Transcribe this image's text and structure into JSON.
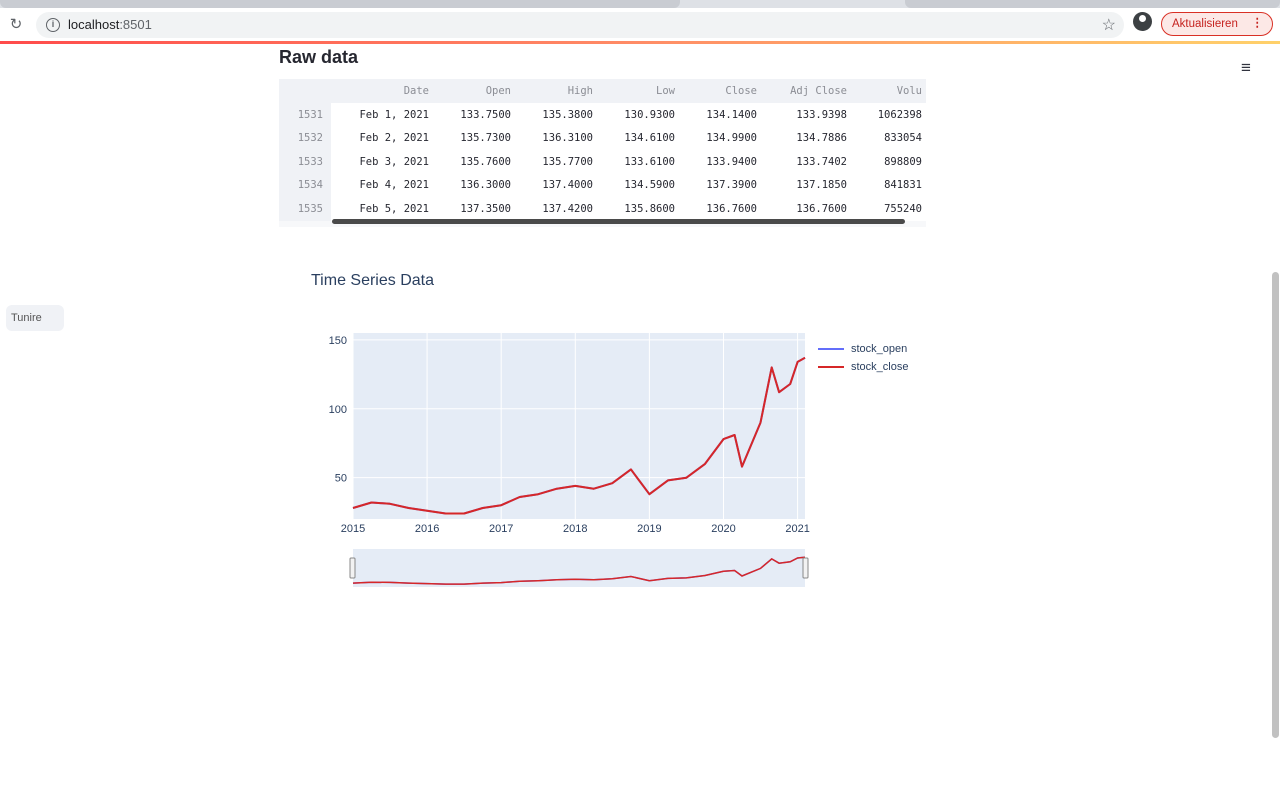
{
  "browser": {
    "url_host": "localhost",
    "url_port": ":8501",
    "update_label": "Aktualisieren",
    "update_dots": "⋮"
  },
  "sidebar": {
    "handle_label": "Tunire"
  },
  "raw": {
    "title": "Raw data",
    "columns": [
      "",
      "Date",
      "Open",
      "High",
      "Low",
      "Close",
      "Adj Close",
      "Volu"
    ],
    "rows": [
      [
        "1531",
        "Feb 1, 2021",
        "133.7500",
        "135.3800",
        "130.9300",
        "134.1400",
        "133.9398",
        "1062398"
      ],
      [
        "1532",
        "Feb 2, 2021",
        "135.7300",
        "136.3100",
        "134.6100",
        "134.9900",
        "134.7886",
        "833054"
      ],
      [
        "1533",
        "Feb 3, 2021",
        "135.7600",
        "135.7700",
        "133.6100",
        "133.9400",
        "133.7402",
        "898809"
      ],
      [
        "1534",
        "Feb 4, 2021",
        "136.3000",
        "137.4000",
        "134.5900",
        "137.3900",
        "137.1850",
        "841831"
      ],
      [
        "1535",
        "Feb 5, 2021",
        "137.3500",
        "137.4200",
        "135.8600",
        "136.7600",
        "136.7600",
        "755240"
      ]
    ]
  },
  "colors": {
    "open": "#636efa",
    "close": "#d62728",
    "plot_bg": "#e5ecf6",
    "accent": "#ff4b4b"
  },
  "chart_data": {
    "type": "line",
    "title": "Time Series Data",
    "x": [
      2015,
      2015.25,
      2015.5,
      2015.75,
      2016,
      2016.25,
      2016.5,
      2016.75,
      2017,
      2017.25,
      2017.5,
      2017.75,
      2018,
      2018.25,
      2018.5,
      2018.75,
      2019,
      2019.25,
      2019.5,
      2019.75,
      2020,
      2020.15,
      2020.25,
      2020.5,
      2020.65,
      2020.75,
      2020.9,
      2021,
      2021.1
    ],
    "series": [
      {
        "name": "stock_open",
        "values": [
          28,
          32,
          31,
          28,
          26,
          24,
          24,
          28,
          30,
          36,
          38,
          42,
          44,
          42,
          46,
          56,
          38,
          48,
          50,
          60,
          78,
          81,
          58,
          90,
          130,
          112,
          118,
          134,
          137
        ]
      },
      {
        "name": "stock_close",
        "values": [
          28,
          32,
          31,
          28,
          26,
          24,
          24,
          28,
          30,
          36,
          38,
          42,
          44,
          42,
          46,
          56,
          38,
          48,
          50,
          60,
          78,
          81,
          58,
          90,
          130,
          112,
          118,
          134,
          137
        ]
      }
    ],
    "ylim": [
      20,
      155
    ],
    "xlim": [
      2015,
      2021.1
    ],
    "yticks": [
      50,
      100,
      150
    ],
    "xticks": [
      2015,
      2016,
      2017,
      2018,
      2019,
      2020,
      2021
    ],
    "grid": true,
    "legend_position": "right"
  }
}
